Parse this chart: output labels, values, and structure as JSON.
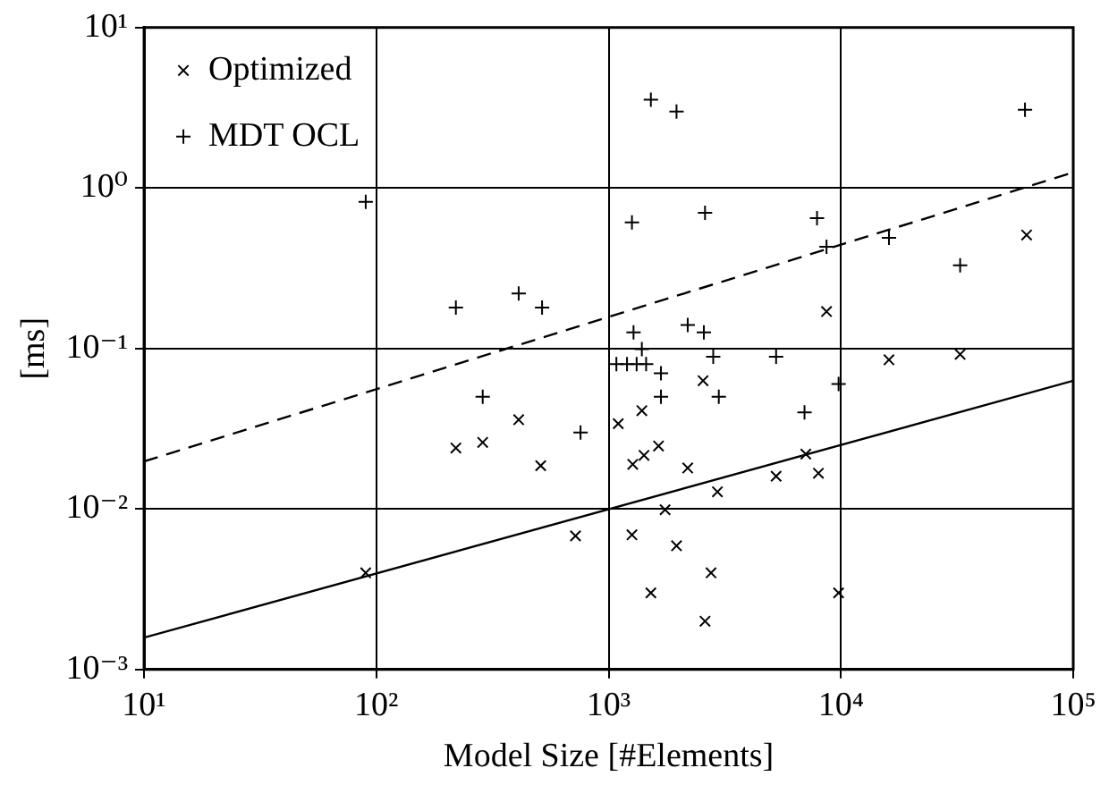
{
  "chart_data": {
    "type": "scatter",
    "xlabel": "Model Size [#Elements]",
    "ylabel": "[ms]",
    "log": "xy",
    "grid": true,
    "legend": "top left",
    "xlim": [
      10,
      100000
    ],
    "xticks": [
      {
        "value": 10,
        "label": "10¹"
      },
      {
        "value": 100,
        "label": "10²"
      },
      {
        "value": 1000,
        "label": "10³"
      },
      {
        "value": 10000,
        "label": "10⁴"
      },
      {
        "value": 100000,
        "label": "10⁵"
      }
    ],
    "ylim": [
      0.001,
      10
    ],
    "yticks": [
      {
        "value": 0.001,
        "label": "10⁻³"
      },
      {
        "value": 0.01,
        "label": "10⁻²"
      },
      {
        "value": 0.1,
        "label": "10⁻¹"
      },
      {
        "value": 1,
        "label": "10⁰"
      },
      {
        "value": 10,
        "label": "10¹"
      }
    ],
    "series": [
      {
        "name": "Optimized",
        "color": "#000000",
        "marker": "cross",
        "x": [
          90,
          220,
          287,
          410,
          510,
          720,
          1100,
          1390,
          1270,
          1420,
          1640,
          2190,
          2550,
          2940,
          1750,
          1260,
          1960,
          2760,
          1520,
          2600,
          5260,
          7060,
          8000,
          9770,
          16100,
          32600,
          8670,
          63000
        ],
        "values": [
          0.004,
          0.024,
          0.026,
          0.036,
          0.0186,
          0.0068,
          0.034,
          0.041,
          0.019,
          0.0216,
          0.0247,
          0.018,
          0.063,
          0.0128,
          0.0099,
          0.0069,
          0.0059,
          0.004,
          0.003,
          0.002,
          0.016,
          0.022,
          0.0167,
          0.003,
          0.085,
          0.092,
          0.17,
          0.51
        ]
      },
      {
        "name": "MDT OCL",
        "color": "#000000",
        "marker": "plus",
        "x": [
          90,
          220,
          410,
          517,
          287,
          757,
          1520,
          1960,
          62000,
          1260,
          2600,
          7890,
          8670,
          16100,
          32600,
          1280,
          2190,
          2570,
          1390,
          2820,
          5260,
          1080,
          1200,
          1320,
          1450,
          1680,
          1680,
          2980,
          6970,
          9770
        ],
        "values": [
          0.82,
          0.18,
          0.22,
          0.18,
          0.05,
          0.03,
          3.55,
          3.0,
          3.07,
          0.61,
          0.7,
          0.65,
          0.43,
          0.49,
          0.33,
          0.126,
          0.14,
          0.126,
          0.099,
          0.089,
          0.089,
          0.08,
          0.08,
          0.08,
          0.08,
          0.07,
          0.05,
          0.05,
          0.04,
          0.06
        ]
      },
      {
        "type": "line",
        "color": "#000000",
        "line_style": "solid",
        "marker": "none",
        "x": [
          10,
          100000
        ],
        "values": [
          0.00158,
          0.063
        ]
      },
      {
        "type": "line",
        "color": "#000000",
        "line_style": "dashed",
        "marker": "none",
        "x": [
          10,
          100000
        ],
        "values": [
          0.0198,
          1.25
        ]
      }
    ]
  }
}
